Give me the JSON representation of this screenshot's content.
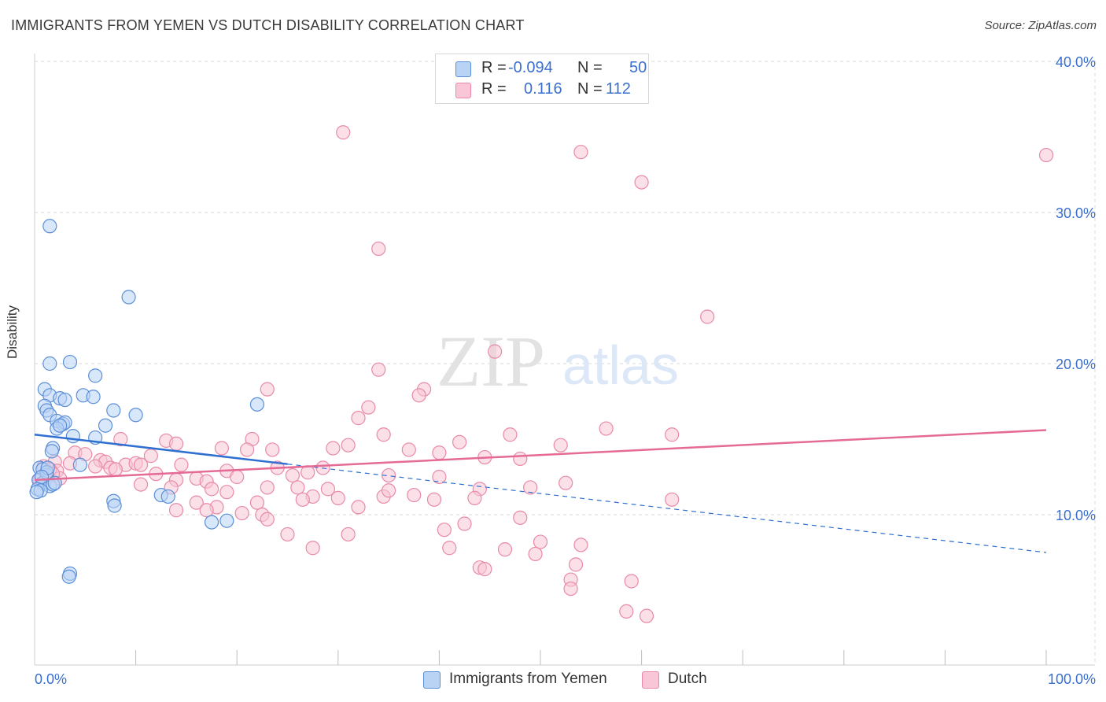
{
  "title": "IMMIGRANTS FROM YEMEN VS DUTCH DISABILITY CORRELATION CHART",
  "source": "Source: ZipAtlas.com",
  "watermark": {
    "zip": "ZIP",
    "atlas": "atlas"
  },
  "colors": {
    "blue_fill": "#b9d3f5",
    "blue_stroke": "#5b8fd8",
    "blue_line": "#2f6fd1",
    "pink_fill": "#f8c6d6",
    "pink_stroke": "#e88aa8",
    "pink_line": "#e56b97",
    "axis_label": "#3a6fd0",
    "grid": "#d9d9d9"
  },
  "legend": {
    "rows": [
      {
        "r_label": "R =",
        "r_value": "-0.094",
        "n_label": "N =",
        "n_value": "50",
        "color": "blue"
      },
      {
        "r_label": "R =",
        "r_value": "0.116",
        "n_label": "N =",
        "n_value": "112",
        "color": "pink"
      }
    ]
  },
  "bottom_legend": {
    "series_a": "Immigrants from Yemen",
    "series_b": "Dutch"
  },
  "chart_data": {
    "type": "scatter",
    "title": "IMMIGRANTS FROM YEMEN VS DUTCH DISABILITY CORRELATION CHART",
    "xlabel": "",
    "ylabel": "Disability",
    "xlim": [
      0,
      100
    ],
    "ylim": [
      0,
      40
    ],
    "y_ticks": [
      10,
      20,
      30,
      40
    ],
    "y_tick_labels": [
      "10.0%",
      "20.0%",
      "30.0%",
      "40.0%"
    ],
    "x_tick_labels": [
      "0.0%",
      "100.0%"
    ],
    "series": [
      {
        "name": "Immigrants from Yemen",
        "color": "blue",
        "r": -0.094,
        "n": 50,
        "trend": {
          "x0": 0,
          "y0": 15.3,
          "x1": 100,
          "y1": 7.5,
          "solid_until": 25
        },
        "points": [
          [
            1.5,
            29.1
          ],
          [
            9.3,
            24.4
          ],
          [
            1.5,
            20.0
          ],
          [
            3.5,
            20.1
          ],
          [
            6.0,
            19.2
          ],
          [
            1.0,
            18.3
          ],
          [
            1.5,
            17.9
          ],
          [
            2.5,
            17.7
          ],
          [
            4.8,
            17.9
          ],
          [
            5.8,
            17.8
          ],
          [
            1.0,
            17.2
          ],
          [
            3.0,
            17.6
          ],
          [
            7.8,
            16.9
          ],
          [
            1.2,
            16.9
          ],
          [
            10.0,
            16.6
          ],
          [
            1.5,
            16.6
          ],
          [
            2.2,
            16.2
          ],
          [
            2.8,
            16.0
          ],
          [
            3.0,
            16.1
          ],
          [
            2.2,
            15.7
          ],
          [
            7.0,
            15.9
          ],
          [
            3.8,
            15.2
          ],
          [
            6.0,
            15.1
          ],
          [
            22.0,
            17.3
          ],
          [
            1.8,
            14.4
          ],
          [
            1.7,
            14.2
          ],
          [
            4.5,
            13.3
          ],
          [
            0.5,
            13.1
          ],
          [
            0.8,
            13.0
          ],
          [
            1.2,
            12.6
          ],
          [
            0.4,
            12.3
          ],
          [
            0.8,
            12.1
          ],
          [
            1.5,
            11.9
          ],
          [
            1.8,
            12.0
          ],
          [
            2.0,
            12.1
          ],
          [
            0.3,
            11.7
          ],
          [
            0.6,
            11.6
          ],
          [
            0.2,
            11.5
          ],
          [
            12.5,
            11.3
          ],
          [
            13.2,
            11.2
          ],
          [
            7.8,
            10.9
          ],
          [
            7.9,
            10.6
          ],
          [
            17.5,
            9.5
          ],
          [
            19.0,
            9.6
          ],
          [
            3.5,
            6.1
          ],
          [
            3.4,
            5.9
          ],
          [
            1.2,
            12.8
          ],
          [
            1.3,
            13.1
          ],
          [
            0.7,
            12.5
          ],
          [
            2.5,
            15.9
          ]
        ]
      },
      {
        "name": "Dutch",
        "color": "pink",
        "r": 0.116,
        "n": 112,
        "trend": {
          "x0": 0,
          "y0": 12.3,
          "x1": 100,
          "y1": 15.6
        },
        "points": [
          [
            30.5,
            35.3
          ],
          [
            54.0,
            34.0
          ],
          [
            100.0,
            33.8
          ],
          [
            60.0,
            32.0
          ],
          [
            34.0,
            27.6
          ],
          [
            66.5,
            23.1
          ],
          [
            45.5,
            20.8
          ],
          [
            34.0,
            19.6
          ],
          [
            23.0,
            18.3
          ],
          [
            38.5,
            18.3
          ],
          [
            38.0,
            17.9
          ],
          [
            33.0,
            17.1
          ],
          [
            32.0,
            16.4
          ],
          [
            56.5,
            15.7
          ],
          [
            47.0,
            15.3
          ],
          [
            63.0,
            15.3
          ],
          [
            34.5,
            15.3
          ],
          [
            21.5,
            15.0
          ],
          [
            13.0,
            14.9
          ],
          [
            42.0,
            14.8
          ],
          [
            8.5,
            15.0
          ],
          [
            14.0,
            14.7
          ],
          [
            31.0,
            14.6
          ],
          [
            29.5,
            14.4
          ],
          [
            52.0,
            14.6
          ],
          [
            18.5,
            14.4
          ],
          [
            23.5,
            14.3
          ],
          [
            21.0,
            14.3
          ],
          [
            37.0,
            14.3
          ],
          [
            40.0,
            14.1
          ],
          [
            4.0,
            14.1
          ],
          [
            5.0,
            14.0
          ],
          [
            11.5,
            13.9
          ],
          [
            44.5,
            13.8
          ],
          [
            48.0,
            13.7
          ],
          [
            6.5,
            13.6
          ],
          [
            7.0,
            13.5
          ],
          [
            9.0,
            13.3
          ],
          [
            10.0,
            13.4
          ],
          [
            10.5,
            13.3
          ],
          [
            2.0,
            13.5
          ],
          [
            3.5,
            13.4
          ],
          [
            6.0,
            13.2
          ],
          [
            7.5,
            13.1
          ],
          [
            14.5,
            13.3
          ],
          [
            8.0,
            13.0
          ],
          [
            2.2,
            12.9
          ],
          [
            0.9,
            13.2
          ],
          [
            1.5,
            13.0
          ],
          [
            24.0,
            13.1
          ],
          [
            28.5,
            13.1
          ],
          [
            27.0,
            12.8
          ],
          [
            12.0,
            12.7
          ],
          [
            19.0,
            12.9
          ],
          [
            25.5,
            12.6
          ],
          [
            35.0,
            12.6
          ],
          [
            40.0,
            12.5
          ],
          [
            14.0,
            12.3
          ],
          [
            16.0,
            12.4
          ],
          [
            20.0,
            12.5
          ],
          [
            1.0,
            12.2
          ],
          [
            2.5,
            12.4
          ],
          [
            1.8,
            12.7
          ],
          [
            0.5,
            12.3
          ],
          [
            17.0,
            12.2
          ],
          [
            10.5,
            12.0
          ],
          [
            23.0,
            11.8
          ],
          [
            26.0,
            11.8
          ],
          [
            13.5,
            11.8
          ],
          [
            29.0,
            11.7
          ],
          [
            17.5,
            11.7
          ],
          [
            19.0,
            11.5
          ],
          [
            37.5,
            11.3
          ],
          [
            27.5,
            11.2
          ],
          [
            34.5,
            11.2
          ],
          [
            44.0,
            11.7
          ],
          [
            49.0,
            11.8
          ],
          [
            52.5,
            12.1
          ],
          [
            35.0,
            11.6
          ],
          [
            30.0,
            11.1
          ],
          [
            43.5,
            11.1
          ],
          [
            26.5,
            11.0
          ],
          [
            39.5,
            11.0
          ],
          [
            63.0,
            11.0
          ],
          [
            16.0,
            10.8
          ],
          [
            22.0,
            10.8
          ],
          [
            18.0,
            10.5
          ],
          [
            32.0,
            10.5
          ],
          [
            17.0,
            10.3
          ],
          [
            14.0,
            10.3
          ],
          [
            20.5,
            10.1
          ],
          [
            22.5,
            10.0
          ],
          [
            48.0,
            9.8
          ],
          [
            23.0,
            9.7
          ],
          [
            42.5,
            9.4
          ],
          [
            40.5,
            9.0
          ],
          [
            25.0,
            8.7
          ],
          [
            31.0,
            8.7
          ],
          [
            50.0,
            8.2
          ],
          [
            27.5,
            7.8
          ],
          [
            41.0,
            7.8
          ],
          [
            46.5,
            7.7
          ],
          [
            54.0,
            8.0
          ],
          [
            49.5,
            7.4
          ],
          [
            44.0,
            6.5
          ],
          [
            53.5,
            6.7
          ],
          [
            53.0,
            5.7
          ],
          [
            59.0,
            5.6
          ],
          [
            53.0,
            5.1
          ],
          [
            58.5,
            3.6
          ],
          [
            60.5,
            3.3
          ],
          [
            44.5,
            6.4
          ]
        ]
      }
    ]
  }
}
